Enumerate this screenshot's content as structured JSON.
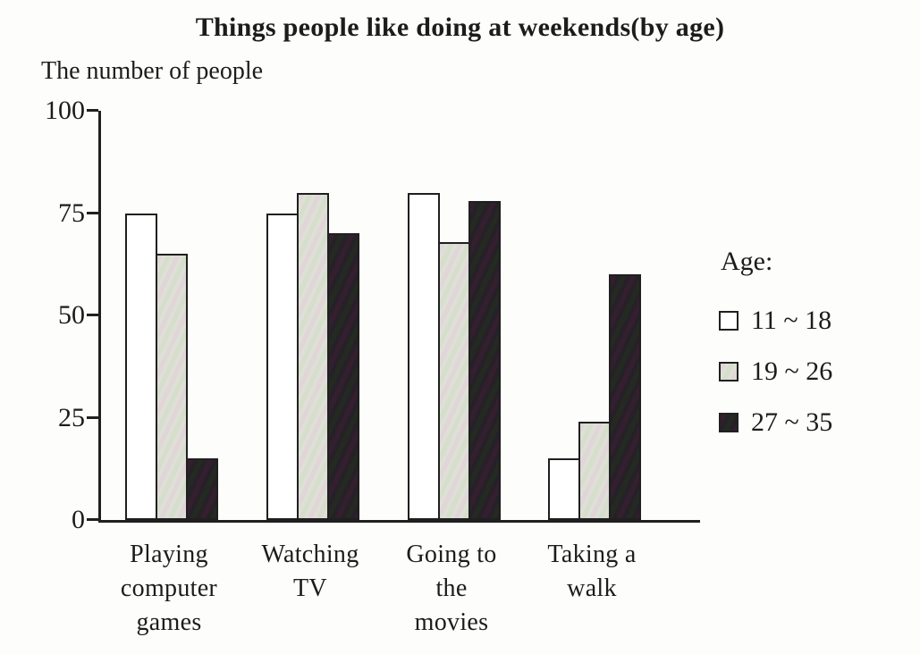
{
  "title": "Things people like doing at weekends(by age)",
  "y_axis_caption": "The number of people",
  "legend": {
    "title": "Age:",
    "items": [
      {
        "label": "11 ~ 18",
        "color": "#ffffff"
      },
      {
        "label": "19 ~ 26",
        "color": "#dedfd6"
      },
      {
        "label": "27 ~ 35",
        "color": "#262028"
      }
    ]
  },
  "colors": {
    "axis": "#202020",
    "bar_border": "#1f1f1f",
    "text": "#1c1c1c",
    "background": "#fdfdfb"
  },
  "chart_data": {
    "type": "bar",
    "title": "Things people like doing at weekends(by age)",
    "xlabel": "",
    "ylabel": "The number of people",
    "ylim": [
      0,
      100
    ],
    "yticks": [
      0,
      25,
      50,
      75,
      100
    ],
    "grid": false,
    "legend_position": "right",
    "categories": [
      "Playing computer games",
      "Watching TV",
      "Going to the movies",
      "Taking a walk"
    ],
    "category_lines": [
      [
        "Playing",
        "computer",
        "games"
      ],
      [
        "Watching",
        "TV"
      ],
      [
        "Going to",
        "the",
        "movies"
      ],
      [
        "Taking a",
        "walk"
      ]
    ],
    "series": [
      {
        "name": "11 ~ 18",
        "values": [
          75,
          75,
          80,
          15
        ]
      },
      {
        "name": "19 ~ 26",
        "values": [
          65,
          80,
          68,
          24
        ]
      },
      {
        "name": "27 ~ 35",
        "values": [
          15,
          70,
          78,
          60
        ]
      }
    ]
  }
}
